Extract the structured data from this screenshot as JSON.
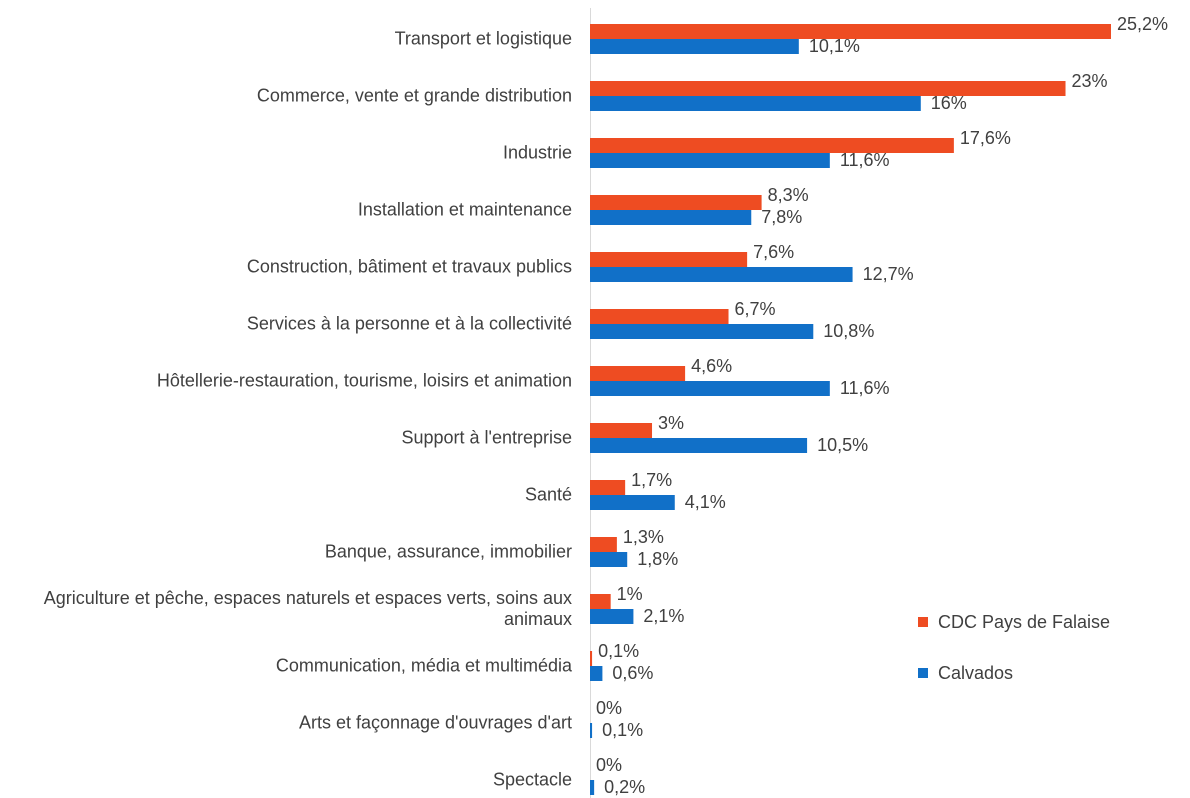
{
  "chart_data": {
    "type": "bar",
    "orientation": "horizontal",
    "categories": [
      "Transport et logistique",
      "Commerce, vente et grande distribution",
      "Industrie",
      "Installation et maintenance",
      "Construction, bâtiment et travaux publics",
      "Services à la personne et à la collectivité",
      "Hôtellerie-restauration, tourisme, loisirs et animation",
      "Support à l'entreprise",
      "Santé",
      "Banque, assurance, immobilier",
      "Agriculture et pêche, espaces naturels et espaces verts, soins aux animaux",
      "Communication, média et multimédia",
      "Arts et façonnage d'ouvrages d'art",
      "Spectacle"
    ],
    "series": [
      {
        "name": "CDC Pays de Falaise",
        "color": "#ee4c22",
        "values": [
          25.2,
          23,
          17.6,
          8.3,
          7.6,
          6.7,
          4.6,
          3,
          1.7,
          1.3,
          1,
          0.1,
          0,
          0
        ],
        "value_labels": [
          "25,2%",
          "23%",
          "17,6%",
          "8,3%",
          "7,6%",
          "6,7%",
          "4,6%",
          "3%",
          "1,7%",
          "1,3%",
          "1%",
          "0,1%",
          "0%",
          "0%"
        ]
      },
      {
        "name": "Calvados",
        "color": "#1170c8",
        "values": [
          10.1,
          16,
          11.6,
          7.8,
          12.7,
          10.8,
          11.6,
          10.5,
          4.1,
          1.8,
          2.1,
          0.6,
          0.1,
          0.2
        ],
        "value_labels": [
          "10,1%",
          "16%",
          "11,6%",
          "7,8%",
          "12,7%",
          "10,8%",
          "11,6%",
          "10,5%",
          "4,1%",
          "1,8%",
          "2,1%",
          "0,6%",
          "0,1%",
          "0,2%"
        ]
      }
    ],
    "legend": "right"
  }
}
